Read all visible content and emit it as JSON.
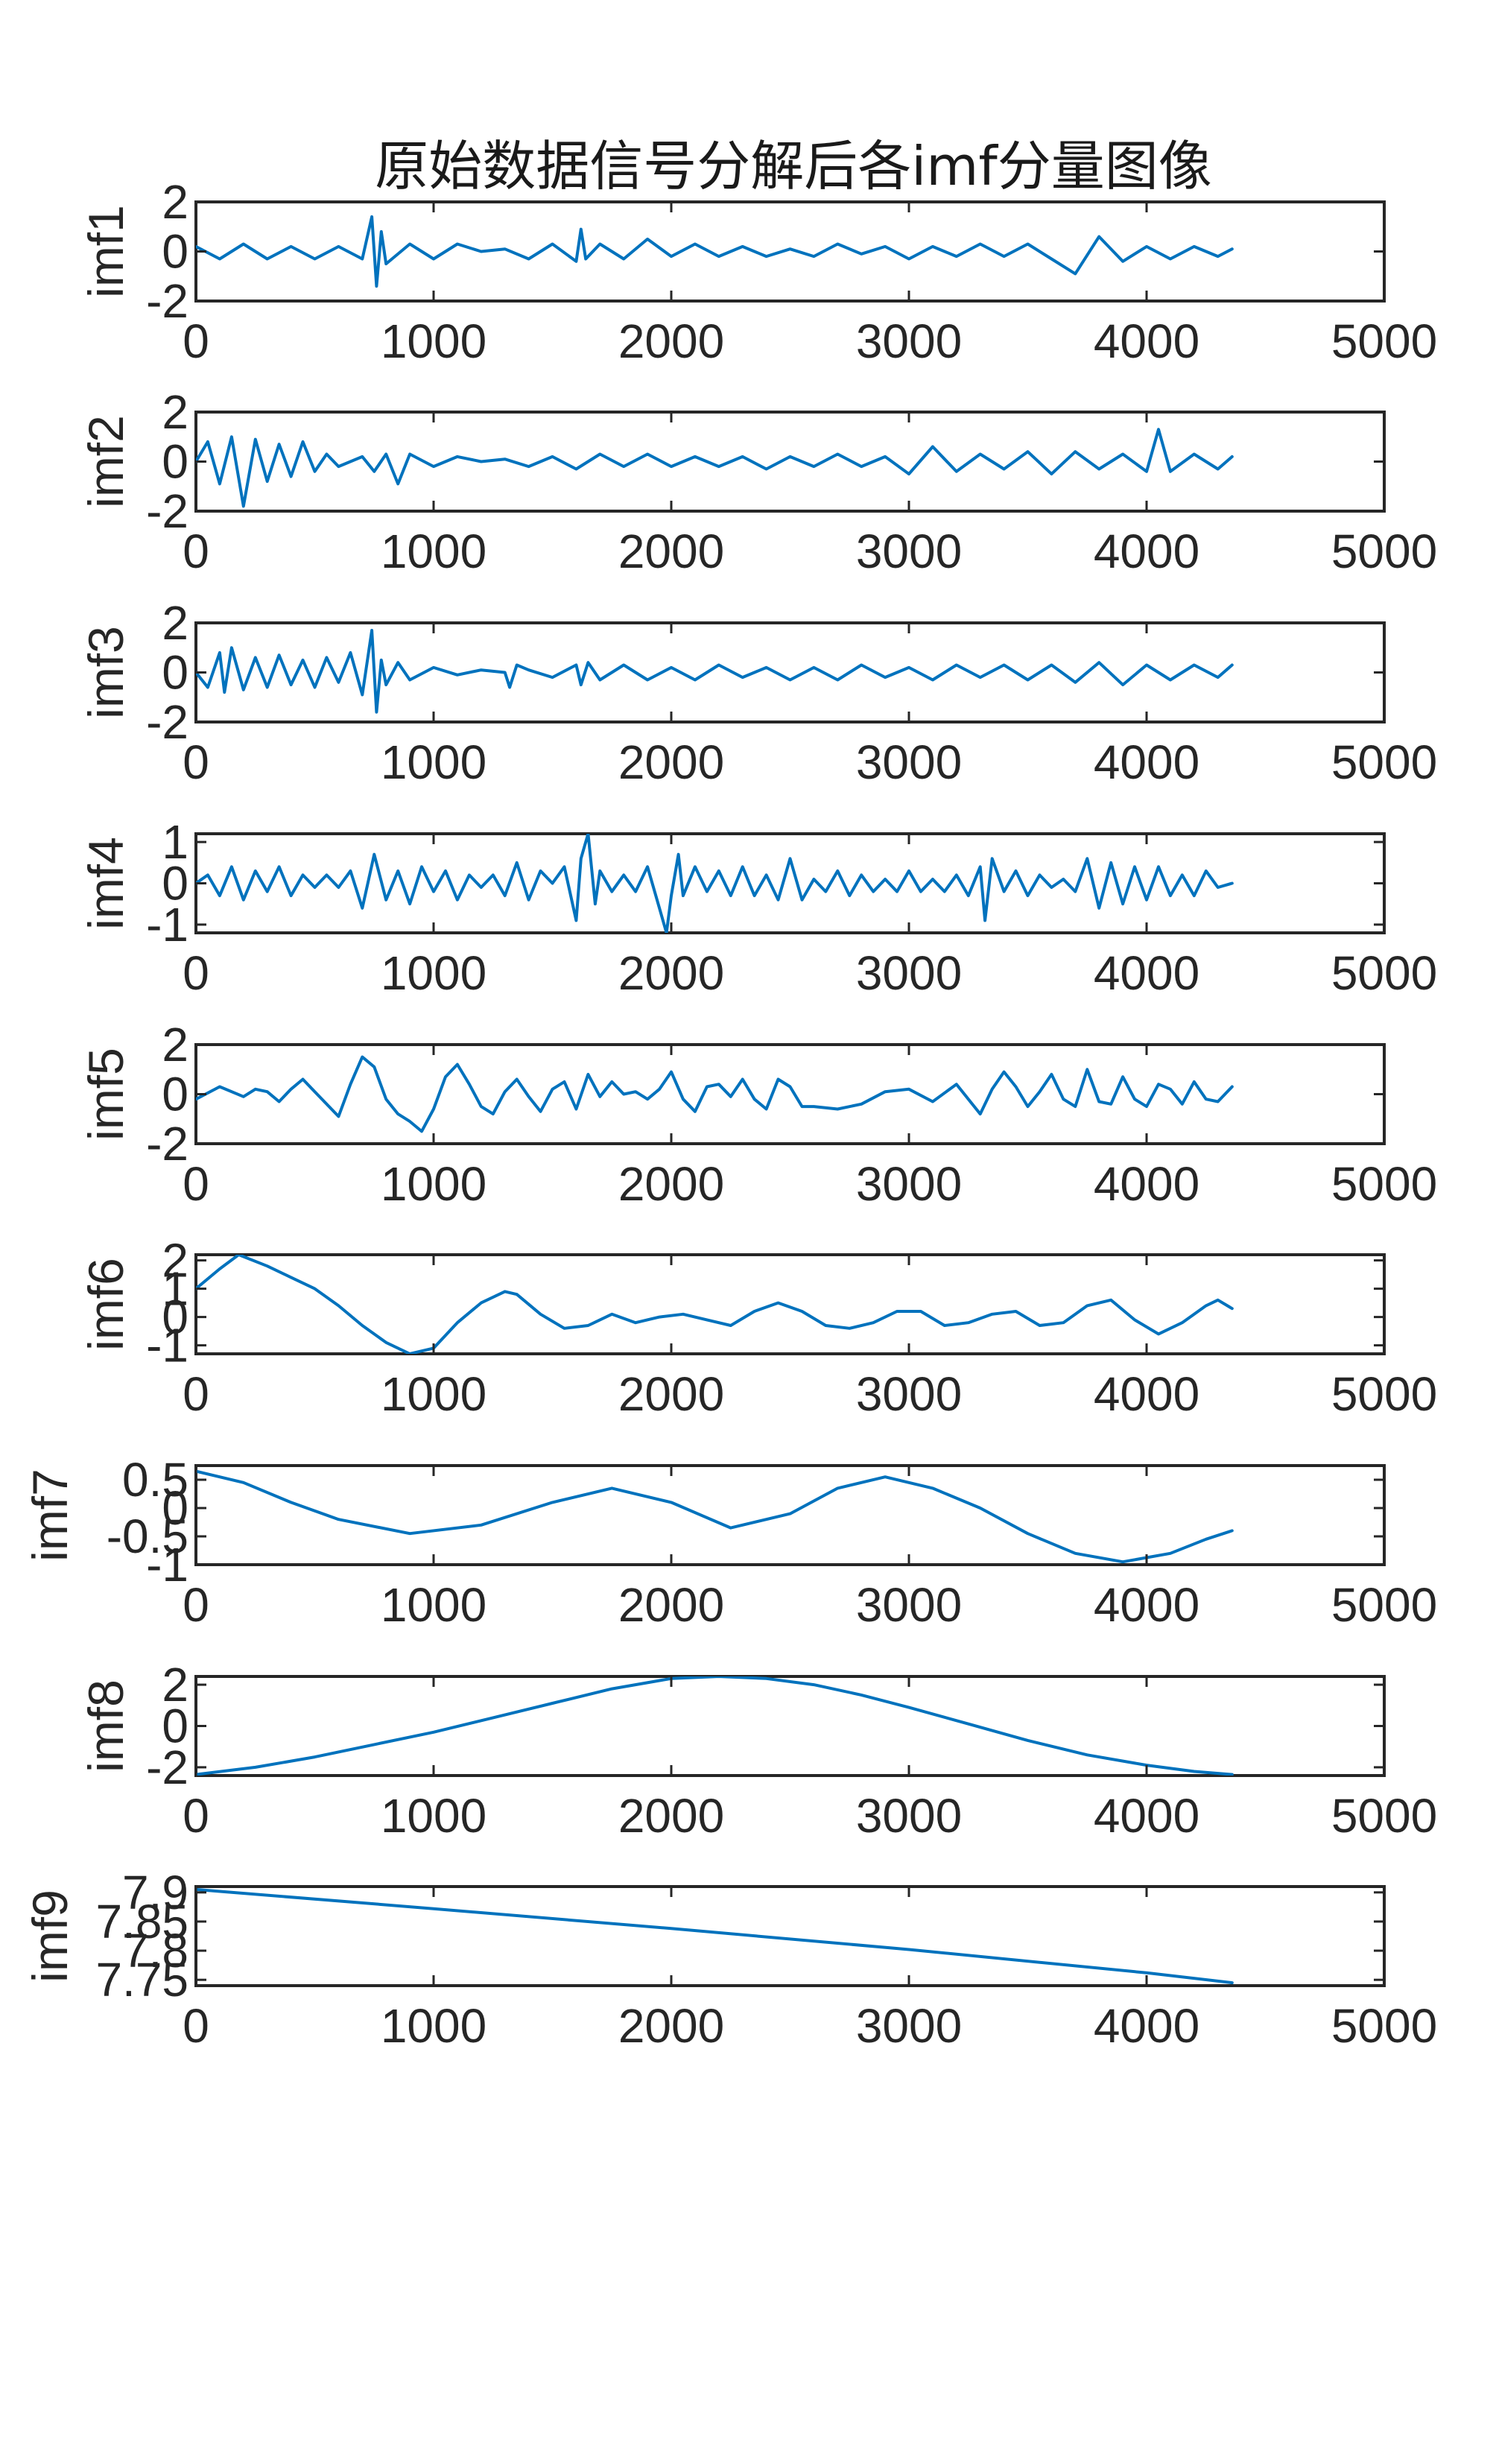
{
  "chart_data": {
    "type": "line",
    "title": "原始数据信号分解后各imf分量图像",
    "line_color": "#0072BD",
    "x_range": [
      0,
      5000
    ],
    "x_ticks": [
      "0",
      "1000",
      "2000",
      "3000",
      "4000",
      "5000"
    ],
    "data_length": 4360,
    "subplots": [
      {
        "ylabel": "imf1",
        "ylim": [
          -2,
          2
        ],
        "y_ticks": [
          {
            "v": 2,
            "label": "2"
          },
          {
            "v": 0,
            "label": "0"
          },
          {
            "v": -2,
            "label": "-2"
          }
        ],
        "x": [
          0,
          100,
          200,
          300,
          400,
          500,
          600,
          700,
          740,
          760,
          780,
          800,
          900,
          1000,
          1100,
          1200,
          1300,
          1400,
          1500,
          1600,
          1620,
          1640,
          1700,
          1800,
          1900,
          2000,
          2100,
          2200,
          2300,
          2400,
          2500,
          2600,
          2700,
          2800,
          2900,
          3000,
          3100,
          3200,
          3300,
          3400,
          3500,
          3600,
          3700,
          3800,
          3900,
          4000,
          4100,
          4200,
          4300,
          4360
        ],
        "y": [
          0.2,
          -0.3,
          0.3,
          -0.3,
          0.2,
          -0.3,
          0.2,
          -0.3,
          1.4,
          -1.4,
          0.8,
          -0.5,
          0.3,
          -0.3,
          0.3,
          0.0,
          0.1,
          -0.3,
          0.3,
          -0.4,
          0.9,
          -0.3,
          0.3,
          -0.3,
          0.5,
          -0.2,
          0.3,
          -0.2,
          0.2,
          -0.2,
          0.1,
          -0.2,
          0.3,
          -0.1,
          0.2,
          -0.3,
          0.2,
          -0.2,
          0.3,
          -0.2,
          0.3,
          -0.3,
          -0.9,
          0.6,
          -0.4,
          0.2,
          -0.3,
          0.2,
          -0.2,
          0.1
        ]
      },
      {
        "ylabel": "imf2",
        "ylim": [
          -2,
          2
        ],
        "y_ticks": [
          {
            "v": 2,
            "label": "2"
          },
          {
            "v": 0,
            "label": "0"
          },
          {
            "v": -2,
            "label": "-2"
          }
        ],
        "x": [
          0,
          50,
          100,
          150,
          200,
          250,
          300,
          350,
          400,
          450,
          500,
          550,
          600,
          700,
          750,
          800,
          850,
          900,
          1000,
          1100,
          1200,
          1300,
          1400,
          1500,
          1600,
          1700,
          1800,
          1900,
          2000,
          2100,
          2200,
          2300,
          2400,
          2500,
          2600,
          2700,
          2800,
          2900,
          3000,
          3100,
          3200,
          3300,
          3400,
          3500,
          3600,
          3700,
          3800,
          3900,
          4000,
          4050,
          4100,
          4200,
          4300,
          4360
        ],
        "y": [
          0.0,
          0.8,
          -0.9,
          1.0,
          -1.8,
          0.9,
          -0.8,
          0.7,
          -0.6,
          0.8,
          -0.4,
          0.3,
          -0.2,
          0.2,
          -0.4,
          0.3,
          -0.9,
          0.3,
          -0.2,
          0.2,
          0.0,
          0.1,
          -0.2,
          0.2,
          -0.3,
          0.3,
          -0.2,
          0.3,
          -0.2,
          0.2,
          -0.2,
          0.2,
          -0.3,
          0.2,
          -0.2,
          0.3,
          -0.2,
          0.2,
          -0.5,
          0.6,
          -0.4,
          0.3,
          -0.3,
          0.4,
          -0.5,
          0.4,
          -0.3,
          0.3,
          -0.4,
          1.3,
          -0.4,
          0.3,
          -0.3,
          0.2
        ]
      },
      {
        "ylabel": "imf3",
        "ylim": [
          -2,
          2
        ],
        "y_ticks": [
          {
            "v": 2,
            "label": "2"
          },
          {
            "v": 0,
            "label": "0"
          },
          {
            "v": -2,
            "label": "-2"
          }
        ],
        "x": [
          0,
          50,
          100,
          120,
          150,
          200,
          250,
          300,
          350,
          400,
          450,
          500,
          550,
          600,
          650,
          700,
          740,
          760,
          780,
          800,
          850,
          900,
          1000,
          1100,
          1200,
          1300,
          1320,
          1350,
          1400,
          1500,
          1600,
          1620,
          1650,
          1700,
          1800,
          1900,
          2000,
          2100,
          2200,
          2300,
          2400,
          2500,
          2600,
          2700,
          2800,
          2900,
          3000,
          3100,
          3200,
          3300,
          3400,
          3500,
          3600,
          3700,
          3800,
          3900,
          4000,
          4100,
          4200,
          4300,
          4360
        ],
        "y": [
          0.0,
          -0.6,
          0.8,
          -0.8,
          1.0,
          -0.7,
          0.6,
          -0.6,
          0.7,
          -0.5,
          0.5,
          -0.6,
          0.6,
          -0.4,
          0.8,
          -0.9,
          1.7,
          -1.6,
          0.5,
          -0.5,
          0.4,
          -0.3,
          0.2,
          -0.1,
          0.1,
          0.0,
          -0.6,
          0.3,
          0.1,
          -0.2,
          0.3,
          -0.5,
          0.4,
          -0.3,
          0.3,
          -0.3,
          0.2,
          -0.3,
          0.3,
          -0.2,
          0.2,
          -0.3,
          0.2,
          -0.3,
          0.3,
          -0.2,
          0.2,
          -0.3,
          0.3,
          -0.2,
          0.3,
          -0.3,
          0.3,
          -0.4,
          0.4,
          -0.5,
          0.3,
          -0.3,
          0.3,
          -0.2,
          0.3
        ]
      },
      {
        "ylabel": "imf4",
        "ylim": [
          -1.2,
          1.2
        ],
        "y_ticks": [
          {
            "v": 1,
            "label": "1"
          },
          {
            "v": 0,
            "label": "0"
          },
          {
            "v": -1,
            "label": "-1"
          }
        ],
        "x": [
          0,
          50,
          100,
          150,
          200,
          250,
          300,
          350,
          400,
          450,
          500,
          550,
          600,
          650,
          700,
          750,
          800,
          850,
          900,
          950,
          1000,
          1050,
          1100,
          1150,
          1200,
          1250,
          1300,
          1350,
          1400,
          1450,
          1500,
          1550,
          1600,
          1620,
          1650,
          1680,
          1700,
          1750,
          1800,
          1850,
          1900,
          1950,
          1980,
          2000,
          2030,
          2050,
          2100,
          2150,
          2200,
          2250,
          2300,
          2350,
          2400,
          2450,
          2500,
          2550,
          2600,
          2650,
          2700,
          2750,
          2800,
          2850,
          2900,
          2950,
          3000,
          3050,
          3100,
          3150,
          3200,
          3250,
          3300,
          3320,
          3350,
          3400,
          3450,
          3500,
          3550,
          3600,
          3650,
          3700,
          3750,
          3800,
          3850,
          3900,
          3950,
          4000,
          4050,
          4100,
          4150,
          4200,
          4250,
          4300,
          4360
        ],
        "y": [
          0.0,
          0.2,
          -0.3,
          0.4,
          -0.4,
          0.3,
          -0.2,
          0.4,
          -0.3,
          0.2,
          -0.1,
          0.2,
          -0.1,
          0.3,
          -0.6,
          0.7,
          -0.4,
          0.3,
          -0.5,
          0.4,
          -0.2,
          0.3,
          -0.4,
          0.2,
          -0.1,
          0.2,
          -0.3,
          0.5,
          -0.4,
          0.3,
          0.0,
          0.4,
          -0.9,
          0.6,
          1.2,
          -0.5,
          0.3,
          -0.2,
          0.2,
          -0.2,
          0.4,
          -0.6,
          -1.2,
          -0.3,
          0.7,
          -0.3,
          0.4,
          -0.2,
          0.3,
          -0.3,
          0.4,
          -0.3,
          0.2,
          -0.4,
          0.6,
          -0.4,
          0.1,
          -0.2,
          0.3,
          -0.3,
          0.2,
          -0.2,
          0.1,
          -0.2,
          0.3,
          -0.2,
          0.1,
          -0.2,
          0.2,
          -0.3,
          0.4,
          -0.9,
          0.6,
          -0.2,
          0.3,
          -0.3,
          0.2,
          -0.1,
          0.1,
          -0.2,
          0.6,
          -0.6,
          0.5,
          -0.5,
          0.4,
          -0.4,
          0.4,
          -0.3,
          0.2,
          -0.3,
          0.3,
          -0.1,
          0.0
        ]
      },
      {
        "ylabel": "imf5",
        "ylim": [
          -2,
          2
        ],
        "y_ticks": [
          {
            "v": 2,
            "label": "2"
          },
          {
            "v": 0,
            "label": "0"
          },
          {
            "v": -2,
            "label": "-2"
          }
        ],
        "x": [
          0,
          100,
          200,
          250,
          300,
          350,
          400,
          450,
          500,
          550,
          600,
          650,
          700,
          750,
          800,
          850,
          900,
          950,
          1000,
          1050,
          1100,
          1150,
          1200,
          1250,
          1300,
          1350,
          1400,
          1450,
          1500,
          1550,
          1600,
          1650,
          1700,
          1750,
          1800,
          1850,
          1900,
          1950,
          2000,
          2050,
          2100,
          2150,
          2200,
          2250,
          2300,
          2350,
          2400,
          2450,
          2500,
          2550,
          2600,
          2700,
          2800,
          2900,
          3000,
          3100,
          3200,
          3250,
          3300,
          3350,
          3400,
          3450,
          3500,
          3550,
          3600,
          3650,
          3700,
          3750,
          3800,
          3850,
          3900,
          3950,
          4000,
          4050,
          4100,
          4150,
          4200,
          4250,
          4300,
          4360
        ],
        "y": [
          -0.2,
          0.3,
          -0.1,
          0.2,
          0.1,
          -0.3,
          0.2,
          0.6,
          0.1,
          -0.4,
          -0.9,
          0.4,
          1.5,
          1.1,
          -0.2,
          -0.8,
          -1.1,
          -1.5,
          -0.6,
          0.7,
          1.2,
          0.4,
          -0.5,
          -0.8,
          0.1,
          0.6,
          -0.1,
          -0.7,
          0.2,
          0.5,
          -0.6,
          0.8,
          -0.1,
          0.5,
          0.0,
          0.1,
          -0.2,
          0.2,
          0.9,
          -0.2,
          -0.7,
          0.3,
          0.4,
          -0.1,
          0.6,
          -0.2,
          -0.6,
          0.6,
          0.3,
          -0.5,
          -0.5,
          -0.6,
          -0.4,
          0.1,
          0.2,
          -0.3,
          0.4,
          -0.2,
          -0.8,
          0.2,
          0.9,
          0.3,
          -0.5,
          0.1,
          0.8,
          -0.2,
          -0.5,
          1.0,
          -0.3,
          -0.4,
          0.7,
          -0.2,
          -0.5,
          0.4,
          0.2,
          -0.4,
          0.5,
          -0.2,
          -0.3,
          0.3
        ]
      },
      {
        "ylabel": "imf6",
        "ylim": [
          -1.3,
          2.2
        ],
        "y_ticks": [
          {
            "v": 2,
            "label": "2"
          },
          {
            "v": 1,
            "label": "1"
          },
          {
            "v": 0,
            "label": "0"
          },
          {
            "v": -1,
            "label": "-1"
          }
        ],
        "x": [
          0,
          100,
          180,
          300,
          400,
          500,
          600,
          700,
          800,
          900,
          1000,
          1100,
          1200,
          1300,
          1350,
          1450,
          1550,
          1650,
          1750,
          1850,
          1950,
          2050,
          2150,
          2250,
          2350,
          2450,
          2550,
          2650,
          2750,
          2850,
          2950,
          3050,
          3150,
          3250,
          3350,
          3450,
          3550,
          3650,
          3750,
          3850,
          3950,
          4050,
          4150,
          4250,
          4300,
          4360
        ],
        "y": [
          1.0,
          1.7,
          2.2,
          1.8,
          1.4,
          1.0,
          0.4,
          -0.3,
          -0.9,
          -1.3,
          -1.1,
          -0.2,
          0.5,
          0.9,
          0.8,
          0.1,
          -0.4,
          -0.3,
          0.1,
          -0.2,
          0.0,
          0.1,
          -0.1,
          -0.3,
          0.2,
          0.5,
          0.2,
          -0.3,
          -0.4,
          -0.2,
          0.2,
          0.2,
          -0.3,
          -0.2,
          0.1,
          0.2,
          -0.3,
          -0.2,
          0.4,
          0.6,
          -0.1,
          -0.6,
          -0.2,
          0.4,
          0.6,
          0.3
        ]
      },
      {
        "ylabel": "imf7",
        "ylim": [
          -1.0,
          0.75
        ],
        "y_ticks": [
          {
            "v": 0.5,
            "label": "0.5"
          },
          {
            "v": 0,
            "label": "0"
          },
          {
            "v": -0.5,
            "label": "-0.5"
          },
          {
            "v": -1,
            "label": "-1"
          }
        ],
        "x": [
          0,
          200,
          400,
          600,
          900,
          1200,
          1500,
          1750,
          2000,
          2250,
          2500,
          2700,
          2900,
          3100,
          3300,
          3500,
          3700,
          3900,
          4100,
          4250,
          4360
        ],
        "y": [
          0.65,
          0.45,
          0.1,
          -0.2,
          -0.45,
          -0.3,
          0.1,
          0.35,
          0.1,
          -0.35,
          -0.1,
          0.35,
          0.55,
          0.35,
          0.0,
          -0.45,
          -0.8,
          -0.95,
          -0.8,
          -0.55,
          -0.4
        ]
      },
      {
        "ylabel": "imf8",
        "ylim": [
          -2.4,
          2.4
        ],
        "y_ticks": [
          {
            "v": 2,
            "label": "2"
          },
          {
            "v": 0,
            "label": "0"
          },
          {
            "v": -2,
            "label": "-2"
          }
        ],
        "x": [
          0,
          250,
          500,
          750,
          1000,
          1250,
          1500,
          1750,
          2000,
          2200,
          2400,
          2600,
          2800,
          3000,
          3250,
          3500,
          3750,
          4000,
          4200,
          4360
        ],
        "y": [
          -2.35,
          -2.0,
          -1.5,
          -0.9,
          -0.3,
          0.4,
          1.1,
          1.8,
          2.3,
          2.4,
          2.3,
          2.0,
          1.5,
          0.9,
          0.1,
          -0.7,
          -1.4,
          -1.9,
          -2.2,
          -2.35
        ]
      },
      {
        "ylabel": "imf9",
        "ylim": [
          7.74,
          7.91
        ],
        "y_ticks": [
          {
            "v": 7.9,
            "label": "7.9"
          },
          {
            "v": 7.85,
            "label": "7.85"
          },
          {
            "v": 7.8,
            "label": "7.8"
          },
          {
            "v": 7.75,
            "label": "7.75"
          }
        ],
        "x": [
          0,
          1000,
          2000,
          3000,
          4000,
          4360
        ],
        "y": [
          7.905,
          7.872,
          7.838,
          7.802,
          7.762,
          7.745
        ]
      }
    ]
  }
}
